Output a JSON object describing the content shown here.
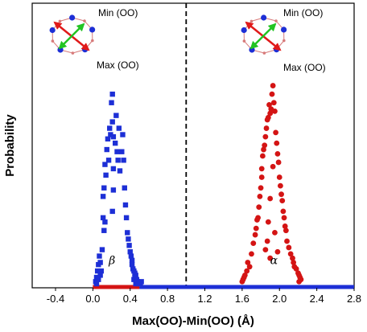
{
  "chart_data": {
    "type": "scatter",
    "title": "",
    "xlabel": "Max(OO)-Min(OO) (Å)",
    "ylabel": "Probability",
    "xlim": [
      -0.65,
      2.8
    ],
    "ylim": [
      0,
      1
    ],
    "x_ticks": [
      "-0.4",
      "0.0",
      "0.4",
      "0.8",
      "1.2",
      "1.6",
      "2.0",
      "2.4",
      "2.8"
    ],
    "x_tick_values": [
      -0.4,
      0.0,
      0.4,
      0.8,
      1.2,
      1.6,
      2.0,
      2.4,
      2.8
    ],
    "y_ticks": [],
    "grid": false,
    "divider_x": 1.0,
    "series": [
      {
        "name": "β",
        "marker": "square",
        "color": "#1d2fd6",
        "points": [
          [
            0.03,
            0.01
          ],
          [
            0.04,
            0.03
          ],
          [
            0.05,
            0.06
          ],
          [
            0.06,
            0.09
          ],
          [
            0.07,
            0.13
          ],
          [
            0.08,
            0.1
          ],
          [
            0.09,
            0.06
          ],
          [
            0.08,
            0.04
          ],
          [
            0.11,
            0.31
          ],
          [
            0.12,
            0.25
          ],
          [
            0.13,
            0.29
          ],
          [
            0.1,
            0.16
          ],
          [
            0.11,
            0.41
          ],
          [
            0.12,
            0.45
          ],
          [
            0.13,
            0.56
          ],
          [
            0.14,
            0.51
          ],
          [
            0.15,
            0.63
          ],
          [
            0.16,
            0.68
          ],
          [
            0.17,
            0.58
          ],
          [
            0.18,
            0.73
          ],
          [
            0.19,
            0.7
          ],
          [
            0.2,
            0.85
          ],
          [
            0.21,
            0.76
          ],
          [
            0.21,
            0.89
          ],
          [
            0.22,
            0.69
          ],
          [
            0.22,
            0.54
          ],
          [
            0.22,
            0.44
          ],
          [
            0.21,
            0.34
          ],
          [
            0.24,
            0.66
          ],
          [
            0.25,
            0.79
          ],
          [
            0.26,
            0.62
          ],
          [
            0.27,
            0.58
          ],
          [
            0.28,
            0.73
          ],
          [
            0.29,
            0.53
          ],
          [
            0.31,
            0.62
          ],
          [
            0.32,
            0.7
          ],
          [
            0.33,
            0.58
          ],
          [
            0.34,
            0.45
          ],
          [
            0.35,
            0.37
          ],
          [
            0.36,
            0.31
          ],
          [
            0.37,
            0.24
          ],
          [
            0.38,
            0.21
          ],
          [
            0.39,
            0.18
          ],
          [
            0.4,
            0.15
          ],
          [
            0.41,
            0.13
          ],
          [
            0.42,
            0.11
          ],
          [
            0.42,
            0.09
          ],
          [
            0.43,
            0.07
          ],
          [
            0.44,
            0.06
          ],
          [
            0.45,
            0.05
          ],
          [
            0.46,
            0.04
          ],
          [
            0.45,
            0.03
          ],
          [
            0.44,
            0.02
          ],
          [
            0.47,
            0.02
          ],
          [
            0.48,
            0.01
          ],
          [
            0.52,
            0.01
          ],
          [
            0.06,
            0.02
          ],
          [
            0.04,
            0.0
          ],
          [
            0.46,
            0.0
          ],
          [
            0.49,
            0.0
          ],
          [
            0.51,
            0.0
          ]
        ]
      },
      {
        "name": "α",
        "marker": "circle",
        "color": "#d41414",
        "points": [
          [
            1.6,
            0.01
          ],
          [
            1.61,
            0.02
          ],
          [
            1.62,
            0.03
          ],
          [
            1.63,
            0.04
          ],
          [
            1.65,
            0.06
          ],
          [
            1.66,
            0.1
          ],
          [
            1.68,
            0.08
          ],
          [
            1.7,
            0.14
          ],
          [
            1.72,
            0.19
          ],
          [
            1.74,
            0.23
          ],
          [
            1.75,
            0.26
          ],
          [
            1.76,
            0.3
          ],
          [
            1.77,
            0.31
          ],
          [
            1.78,
            0.36
          ],
          [
            1.79,
            0.41
          ],
          [
            1.8,
            0.45
          ],
          [
            1.81,
            0.5
          ],
          [
            1.81,
            0.54
          ],
          [
            1.82,
            0.6
          ],
          [
            1.83,
            0.63
          ],
          [
            1.84,
            0.65
          ],
          [
            1.85,
            0.69
          ],
          [
            1.86,
            0.73
          ],
          [
            1.87,
            0.77
          ],
          [
            1.88,
            0.78
          ],
          [
            1.89,
            0.84
          ],
          [
            1.9,
            0.8
          ],
          [
            1.91,
            0.82
          ],
          [
            1.92,
            0.89
          ],
          [
            1.93,
            0.93
          ],
          [
            1.94,
            0.85
          ],
          [
            1.95,
            0.81
          ],
          [
            1.96,
            0.71
          ],
          [
            1.97,
            0.66
          ],
          [
            1.98,
            0.61
          ],
          [
            1.99,
            0.57
          ],
          [
            2.0,
            0.5
          ],
          [
            2.01,
            0.46
          ],
          [
            2.02,
            0.42
          ],
          [
            2.03,
            0.39
          ],
          [
            2.04,
            0.34
          ],
          [
            2.05,
            0.31
          ],
          [
            2.06,
            0.27
          ],
          [
            2.07,
            0.25
          ],
          [
            2.08,
            0.2
          ],
          [
            2.1,
            0.17
          ],
          [
            2.12,
            0.14
          ],
          [
            2.14,
            0.12
          ],
          [
            2.15,
            0.1
          ],
          [
            2.16,
            0.08
          ],
          [
            2.18,
            0.07
          ],
          [
            2.2,
            0.05
          ],
          [
            2.21,
            0.04
          ],
          [
            2.22,
            0.03
          ],
          [
            2.23,
            0.02
          ],
          [
            2.21,
            0.01
          ],
          [
            1.93,
            0.55
          ],
          [
            1.9,
            0.4
          ],
          [
            1.88,
            0.29
          ],
          [
            1.95,
            0.24
          ],
          [
            1.87,
            0.2
          ],
          [
            1.85,
            0.16
          ],
          [
            1.98,
            0.15
          ],
          [
            1.9,
            0.12
          ]
        ]
      }
    ],
    "baseline_segments": [
      {
        "from": 0.0,
        "to": 0.5,
        "color": "#d41414"
      },
      {
        "from": 0.5,
        "to": 2.8,
        "color": "#1d2fd6"
      }
    ],
    "annotations": [
      {
        "text": "β",
        "x": 0.17,
        "y": 0.07
      },
      {
        "text": "α",
        "x": 1.9,
        "y": 0.07
      }
    ],
    "insets": [
      {
        "id": "left",
        "min_label": "Min (OO)",
        "max_label": "Max (OO)"
      },
      {
        "id": "right",
        "min_label": "Min (OO)",
        "max_label": "Max (OO)"
      }
    ]
  },
  "colors": {
    "beta": "#1d2fd6",
    "alpha": "#d41414",
    "arrow_max": "#e01a1a",
    "arrow_min": "#22c422",
    "ring_atom": "#1d2fd6",
    "ring_bond": "#d77a7a"
  }
}
